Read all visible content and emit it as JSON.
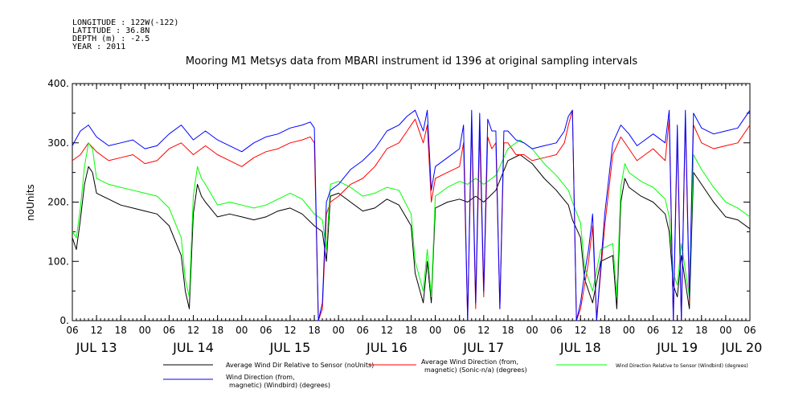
{
  "header": {
    "longitude": "LONGITUDE : 122W(-122)",
    "latitude": "LATITUDE : 36.8N",
    "depth": "DEPTH (m) : -2.5",
    "year": "YEAR : 2011"
  },
  "chart_data": {
    "type": "line",
    "title": "Mooring M1 Metsys data from MBARI instrument id 1396 at original sampling intervals",
    "ylabel": "noUnits",
    "xlabel": "",
    "ylim": [
      0,
      400
    ],
    "yticks": [
      0,
      100,
      200,
      300,
      400
    ],
    "ytick_labels": [
      "0.",
      "100.",
      "200.",
      "300.",
      "400."
    ],
    "x_range_hours": [
      6,
      174
    ],
    "x_range_labels": [
      "JUL 13 06:00",
      "JUL 20 06:00"
    ],
    "hour_tick_labels": [
      "06",
      "12",
      "18",
      "00",
      "06",
      "12",
      "18",
      "00",
      "06",
      "12",
      "18",
      "00",
      "06",
      "12",
      "18",
      "00",
      "06",
      "12",
      "18",
      "00",
      "06",
      "12",
      "18",
      "00",
      "06",
      "12",
      "18",
      "00",
      "06"
    ],
    "day_labels": [
      "JUL 13",
      "JUL 14",
      "JUL 15",
      "JUL 16",
      "JUL 17",
      "JUL 18",
      "JUL 19",
      "JUL 20"
    ],
    "grid": false,
    "legend_position": "bottom",
    "series": [
      {
        "name": "Average Wind Dir Relative to Sensor (noUnits)",
        "color": "#000000",
        "x": [
          6,
          7,
          8,
          9,
          10,
          11,
          12,
          15,
          18,
          21,
          24,
          27,
          30,
          33,
          34,
          35,
          36,
          37,
          38,
          39,
          42,
          45,
          48,
          51,
          54,
          57,
          60,
          63,
          66,
          68,
          69,
          70,
          72,
          75,
          78,
          81,
          84,
          87,
          90,
          91,
          93,
          94,
          95,
          96,
          99,
          102,
          104,
          106,
          108,
          111,
          114,
          117,
          120,
          123,
          126,
          129,
          130,
          132,
          133,
          135,
          137,
          140,
          141,
          142,
          143,
          144,
          147,
          150,
          153,
          154,
          155,
          156,
          157,
          159,
          160,
          162,
          165,
          168,
          171,
          174
        ],
        "y": [
          140,
          120,
          170,
          230,
          260,
          250,
          215,
          205,
          195,
          190,
          185,
          180,
          160,
          110,
          50,
          20,
          180,
          230,
          210,
          200,
          175,
          180,
          175,
          170,
          175,
          185,
          190,
          180,
          160,
          150,
          100,
          210,
          215,
          200,
          185,
          190,
          205,
          195,
          160,
          80,
          30,
          100,
          30,
          190,
          200,
          205,
          200,
          210,
          200,
          220,
          270,
          280,
          265,
          240,
          220,
          195,
          170,
          140,
          70,
          30,
          100,
          110,
          20,
          200,
          240,
          225,
          210,
          200,
          180,
          150,
          60,
          40,
          110,
          20,
          250,
          230,
          200,
          175,
          170,
          155
        ]
      },
      {
        "name": "Average Wind Direction (from, magnetic) (Sonic-n/a) (degrees)",
        "color": "#ff0000",
        "x": [
          6,
          8,
          10,
          12,
          15,
          18,
          21,
          24,
          27,
          30,
          33,
          36,
          39,
          42,
          45,
          48,
          51,
          54,
          57,
          60,
          63,
          65,
          66,
          67,
          68,
          69,
          70,
          72,
          75,
          78,
          81,
          84,
          87,
          89,
          91,
          93,
          94,
          95,
          96,
          99,
          102,
          103,
          104,
          105,
          106,
          107,
          108,
          109,
          110,
          111,
          112,
          113,
          114,
          116,
          118,
          120,
          123,
          126,
          128,
          129,
          130,
          131,
          132,
          133,
          134,
          135,
          136,
          137,
          138,
          140,
          142,
          144,
          146,
          148,
          150,
          153,
          154,
          155,
          156,
          157,
          158,
          159,
          160,
          162,
          165,
          168,
          171,
          174
        ],
        "y": [
          270,
          280,
          300,
          285,
          270,
          275,
          280,
          265,
          270,
          290,
          300,
          280,
          295,
          280,
          270,
          260,
          275,
          285,
          290,
          300,
          305,
          310,
          300,
          0,
          20,
          180,
          200,
          210,
          230,
          240,
          260,
          290,
          300,
          320,
          340,
          300,
          330,
          200,
          240,
          250,
          260,
          300,
          0,
          330,
          20,
          320,
          40,
          310,
          290,
          300,
          20,
          300,
          300,
          280,
          280,
          270,
          275,
          280,
          300,
          330,
          355,
          0,
          20,
          60,
          100,
          160,
          0,
          80,
          160,
          280,
          310,
          290,
          270,
          280,
          290,
          270,
          340,
          0,
          310,
          0,
          340,
          30,
          330,
          300,
          290,
          295,
          300,
          330
        ]
      },
      {
        "name": "Wind Direction Relative to Sensor (Windbird) (degrees)",
        "color": "#00ff00",
        "x": [
          6,
          7,
          8,
          9,
          10,
          11,
          12,
          15,
          18,
          21,
          24,
          27,
          30,
          33,
          34,
          35,
          36,
          37,
          38,
          39,
          42,
          45,
          48,
          51,
          54,
          57,
          60,
          63,
          66,
          68,
          69,
          70,
          72,
          75,
          78,
          81,
          84,
          87,
          90,
          91,
          93,
          94,
          95,
          96,
          99,
          102,
          104,
          106,
          108,
          111,
          114,
          117,
          120,
          123,
          126,
          129,
          130,
          132,
          133,
          135,
          137,
          140,
          141,
          142,
          143,
          144,
          147,
          150,
          153,
          154,
          155,
          156,
          157,
          159,
          160,
          162,
          165,
          168,
          171,
          174
        ],
        "y": [
          150,
          140,
          190,
          260,
          300,
          290,
          240,
          230,
          225,
          220,
          215,
          210,
          190,
          140,
          70,
          40,
          210,
          260,
          240,
          230,
          195,
          200,
          195,
          190,
          195,
          205,
          215,
          205,
          180,
          170,
          120,
          230,
          235,
          225,
          210,
          215,
          225,
          220,
          180,
          100,
          50,
          120,
          40,
          210,
          225,
          235,
          230,
          240,
          230,
          245,
          290,
          305,
          290,
          265,
          245,
          220,
          200,
          165,
          90,
          50,
          120,
          130,
          40,
          225,
          265,
          250,
          235,
          225,
          205,
          175,
          80,
          60,
          130,
          40,
          280,
          255,
          225,
          200,
          190,
          175
        ]
      },
      {
        "name": "Wind Direction (from, magnetic) (Windbird) (degrees)",
        "color": "#0000ff",
        "x": [
          6,
          8,
          10,
          12,
          15,
          18,
          21,
          24,
          27,
          30,
          33,
          36,
          39,
          42,
          45,
          48,
          51,
          54,
          57,
          60,
          63,
          65,
          66,
          67,
          68,
          69,
          70,
          72,
          75,
          78,
          81,
          84,
          87,
          89,
          91,
          93,
          94,
          95,
          96,
          99,
          102,
          103,
          104,
          105,
          106,
          107,
          108,
          109,
          110,
          111,
          112,
          113,
          114,
          116,
          118,
          120,
          123,
          126,
          128,
          129,
          130,
          131,
          132,
          133,
          134,
          135,
          136,
          137,
          138,
          140,
          142,
          144,
          146,
          148,
          150,
          153,
          154,
          155,
          156,
          157,
          158,
          159,
          160,
          162,
          165,
          168,
          171,
          174
        ],
        "y": [
          295,
          320,
          330,
          310,
          295,
          300,
          305,
          290,
          295,
          315,
          330,
          305,
          320,
          305,
          295,
          285,
          300,
          310,
          315,
          325,
          330,
          335,
          325,
          0,
          30,
          200,
          220,
          230,
          255,
          270,
          290,
          320,
          330,
          345,
          355,
          320,
          355,
          220,
          260,
          275,
          290,
          330,
          0,
          355,
          30,
          350,
          50,
          340,
          320,
          320,
          20,
          320,
          320,
          305,
          300,
          290,
          295,
          300,
          320,
          345,
          355,
          0,
          30,
          80,
          120,
          180,
          0,
          90,
          180,
          300,
          330,
          315,
          295,
          305,
          315,
          300,
          355,
          0,
          330,
          0,
          355,
          40,
          350,
          325,
          315,
          320,
          325,
          355
        ]
      }
    ]
  }
}
